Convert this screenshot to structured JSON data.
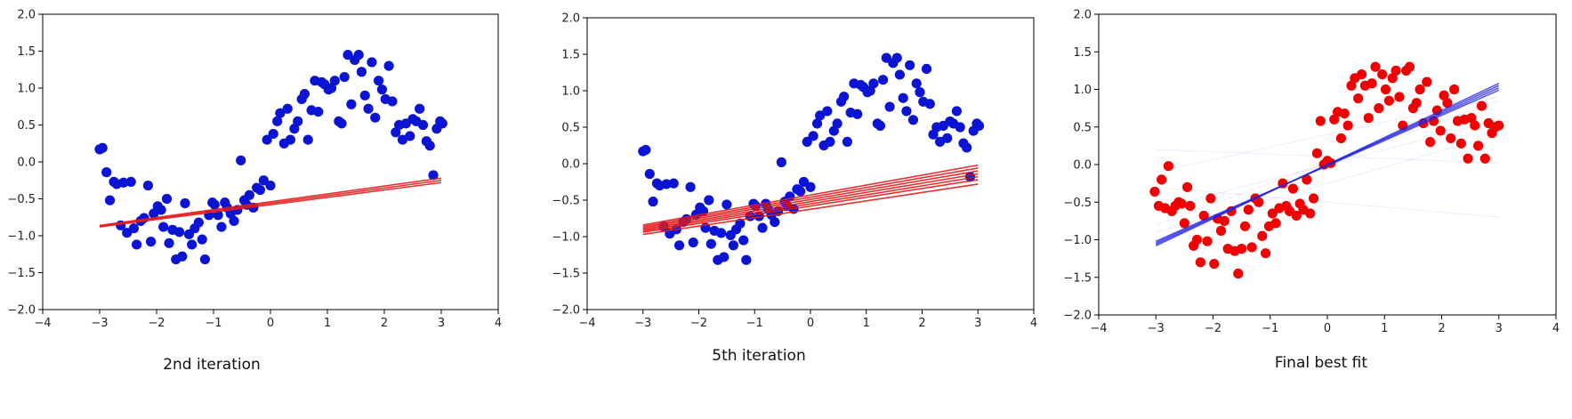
{
  "chart_data": [
    {
      "type": "scatter",
      "caption": "2nd iteration",
      "xlim": [
        -4,
        4
      ],
      "ylim": [
        -2.0,
        2.0
      ],
      "xticks": [
        -4,
        -3,
        -2,
        -1,
        0,
        1,
        2,
        3,
        4
      ],
      "yticks": [
        -2.0,
        -1.5,
        -1.0,
        -0.5,
        0.0,
        0.5,
        1.0,
        1.5,
        2.0
      ],
      "grid": false,
      "point_color": "#0a14d2",
      "line_color": "#e41a1a",
      "line_alpha": 0.9,
      "fit_lines": [
        {
          "x": [
            -3,
            3
          ],
          "y": [
            -0.86,
            -0.22
          ]
        },
        {
          "x": [
            -3,
            3
          ],
          "y": [
            -0.87,
            -0.25
          ]
        },
        {
          "x": [
            -3,
            3
          ],
          "y": [
            -0.88,
            -0.28
          ]
        }
      ],
      "points": {
        "x": [
          -3.0,
          -2.95,
          -2.88,
          -2.82,
          -2.75,
          -2.7,
          -2.63,
          -2.58,
          -2.52,
          -2.45,
          -2.4,
          -2.35,
          -2.28,
          -2.22,
          -2.15,
          -2.1,
          -2.05,
          -1.98,
          -1.92,
          -1.88,
          -1.82,
          -1.78,
          -1.72,
          -1.66,
          -1.6,
          -1.55,
          -1.5,
          -1.43,
          -1.38,
          -1.33,
          -1.26,
          -1.2,
          -1.15,
          -1.08,
          -1.02,
          -0.98,
          -0.92,
          -0.86,
          -0.8,
          -0.76,
          -0.7,
          -0.64,
          -0.58,
          -0.52,
          -0.46,
          -0.42,
          -0.37,
          -0.3,
          -0.24,
          -0.18,
          -0.12,
          -0.06,
          0.0,
          0.05,
          0.12,
          0.17,
          0.24,
          0.3,
          0.35,
          0.42,
          0.48,
          0.55,
          0.6,
          0.66,
          0.72,
          0.78,
          0.84,
          0.9,
          0.95,
          1.02,
          1.07,
          1.13,
          1.2,
          1.25,
          1.3,
          1.36,
          1.42,
          1.48,
          1.55,
          1.6,
          1.66,
          1.72,
          1.78,
          1.84,
          1.9,
          1.96,
          2.02,
          2.08,
          2.14,
          2.2,
          2.26,
          2.32,
          2.38,
          2.45,
          2.5,
          2.56,
          2.62,
          2.68,
          2.74,
          2.8,
          2.86,
          2.92,
          2.98,
          3.02
        ],
        "y": [
          0.17,
          0.19,
          -0.14,
          -0.52,
          -0.27,
          -0.3,
          -0.86,
          -0.28,
          -0.96,
          -0.27,
          -0.9,
          -1.12,
          -0.8,
          -0.76,
          -0.32,
          -1.08,
          -0.7,
          -0.6,
          -0.65,
          -0.88,
          -0.5,
          -1.1,
          -0.92,
          -1.32,
          -0.95,
          -1.28,
          -0.56,
          -0.98,
          -1.12,
          -0.9,
          -0.82,
          -1.05,
          -1.32,
          -0.72,
          -0.55,
          -0.58,
          -0.72,
          -0.88,
          -0.55,
          -0.62,
          -0.7,
          -0.8,
          -0.65,
          0.02,
          -0.52,
          -0.58,
          -0.45,
          -0.62,
          -0.35,
          -0.38,
          -0.25,
          0.3,
          -0.32,
          0.38,
          0.55,
          0.66,
          0.25,
          0.72,
          0.3,
          0.45,
          0.55,
          0.85,
          0.92,
          0.3,
          0.7,
          1.1,
          0.68,
          1.08,
          1.05,
          0.98,
          1.0,
          1.1,
          0.55,
          0.52,
          1.15,
          1.45,
          0.78,
          1.38,
          1.45,
          1.22,
          0.9,
          0.72,
          1.35,
          0.6,
          1.1,
          0.98,
          0.85,
          1.3,
          0.82,
          0.4,
          0.5,
          0.3,
          0.52,
          0.35,
          0.58,
          0.55,
          0.72,
          0.5,
          0.28,
          0.22,
          -0.18,
          0.45,
          0.55,
          0.52
        ]
      }
    },
    {
      "type": "scatter",
      "caption": "5th iteration",
      "xlim": [
        -4,
        4
      ],
      "ylim": [
        -2.0,
        2.0
      ],
      "xticks": [
        -4,
        -3,
        -2,
        -1,
        0,
        1,
        2,
        3,
        4
      ],
      "yticks": [
        -2.0,
        -1.5,
        -1.0,
        -0.5,
        0.0,
        0.5,
        1.0,
        1.5,
        2.0
      ],
      "grid": false,
      "point_color": "#0a14d2",
      "line_color": "#e41a1a",
      "line_alpha": 0.9,
      "fit_lines": [
        {
          "x": [
            -3,
            3
          ],
          "y": [
            -0.84,
            -0.02
          ]
        },
        {
          "x": [
            -3,
            3
          ],
          "y": [
            -0.86,
            -0.06
          ]
        },
        {
          "x": [
            -3,
            3
          ],
          "y": [
            -0.88,
            -0.1
          ]
        },
        {
          "x": [
            -3,
            3
          ],
          "y": [
            -0.9,
            -0.14
          ]
        },
        {
          "x": [
            -3,
            3
          ],
          "y": [
            -0.92,
            -0.18
          ]
        },
        {
          "x": [
            -3,
            3
          ],
          "y": [
            -0.94,
            -0.22
          ]
        },
        {
          "x": [
            -3,
            3
          ],
          "y": [
            -0.97,
            -0.28
          ]
        }
      ],
      "points": {
        "x": [
          -3.0,
          -2.95,
          -2.88,
          -2.82,
          -2.75,
          -2.7,
          -2.63,
          -2.58,
          -2.52,
          -2.45,
          -2.4,
          -2.35,
          -2.28,
          -2.22,
          -2.15,
          -2.1,
          -2.05,
          -1.98,
          -1.92,
          -1.88,
          -1.82,
          -1.78,
          -1.72,
          -1.66,
          -1.6,
          -1.55,
          -1.5,
          -1.43,
          -1.38,
          -1.33,
          -1.26,
          -1.2,
          -1.15,
          -1.08,
          -1.02,
          -0.98,
          -0.92,
          -0.86,
          -0.8,
          -0.76,
          -0.7,
          -0.64,
          -0.58,
          -0.52,
          -0.46,
          -0.42,
          -0.37,
          -0.3,
          -0.24,
          -0.18,
          -0.12,
          -0.06,
          0.0,
          0.05,
          0.12,
          0.17,
          0.24,
          0.3,
          0.35,
          0.42,
          0.48,
          0.55,
          0.6,
          0.66,
          0.72,
          0.78,
          0.84,
          0.9,
          0.95,
          1.02,
          1.07,
          1.13,
          1.2,
          1.25,
          1.3,
          1.36,
          1.42,
          1.48,
          1.55,
          1.6,
          1.66,
          1.72,
          1.78,
          1.84,
          1.9,
          1.96,
          2.02,
          2.08,
          2.14,
          2.2,
          2.26,
          2.32,
          2.38,
          2.45,
          2.5,
          2.56,
          2.62,
          2.68,
          2.74,
          2.8,
          2.86,
          2.92,
          2.98,
          3.02
        ],
        "y": [
          0.17,
          0.19,
          -0.14,
          -0.52,
          -0.27,
          -0.3,
          -0.86,
          -0.28,
          -0.96,
          -0.27,
          -0.9,
          -1.12,
          -0.8,
          -0.76,
          -0.32,
          -1.08,
          -0.7,
          -0.6,
          -0.65,
          -0.88,
          -0.5,
          -1.1,
          -0.92,
          -1.32,
          -0.95,
          -1.28,
          -0.56,
          -0.98,
          -1.12,
          -0.9,
          -0.82,
          -1.05,
          -1.32,
          -0.72,
          -0.55,
          -0.58,
          -0.72,
          -0.88,
          -0.55,
          -0.62,
          -0.7,
          -0.8,
          -0.65,
          0.02,
          -0.52,
          -0.58,
          -0.45,
          -0.62,
          -0.35,
          -0.38,
          -0.25,
          0.3,
          -0.32,
          0.38,
          0.55,
          0.66,
          0.25,
          0.72,
          0.3,
          0.45,
          0.55,
          0.85,
          0.92,
          0.3,
          0.7,
          1.1,
          0.68,
          1.08,
          1.05,
          0.98,
          1.0,
          1.1,
          0.55,
          0.52,
          1.15,
          1.45,
          0.78,
          1.38,
          1.45,
          1.22,
          0.9,
          0.72,
          1.35,
          0.6,
          1.1,
          0.98,
          0.85,
          1.3,
          0.82,
          0.4,
          0.5,
          0.3,
          0.52,
          0.35,
          0.58,
          0.55,
          0.72,
          0.5,
          0.28,
          0.22,
          -0.18,
          0.45,
          0.55,
          0.52
        ]
      }
    },
    {
      "type": "scatter",
      "caption": "Final best fit",
      "xlim": [
        -4,
        4
      ],
      "ylim": [
        -2.0,
        2.0
      ],
      "xticks": [
        -4,
        -3,
        -2,
        -1,
        0,
        1,
        2,
        3,
        4
      ],
      "yticks": [
        -2.0,
        -1.5,
        -1.0,
        -0.5,
        0.0,
        0.5,
        1.0,
        1.5,
        2.0
      ],
      "grid": false,
      "point_color": "#f00000",
      "line_color": "#2424e0",
      "line_alpha": 0.75,
      "fit_lines": [
        {
          "x": [
            -3,
            3
          ],
          "y": [
            -1.08,
            1.08
          ]
        },
        {
          "x": [
            -3,
            3
          ],
          "y": [
            -1.06,
            1.05
          ]
        },
        {
          "x": [
            -3,
            3
          ],
          "y": [
            -1.04,
            1.02
          ]
        },
        {
          "x": [
            -3,
            3
          ],
          "y": [
            -1.02,
            0.99
          ]
        }
      ],
      "faint_lines": [
        {
          "x": [
            -3,
            3
          ],
          "y": [
            0.2,
            0.02
          ]
        },
        {
          "x": [
            -3,
            3
          ],
          "y": [
            -0.1,
            0.9
          ]
        },
        {
          "x": [
            -3,
            3
          ],
          "y": [
            -0.6,
            0.6
          ]
        },
        {
          "x": [
            -3,
            3
          ],
          "y": [
            -0.9,
            0.4
          ]
        },
        {
          "x": [
            -3,
            3
          ],
          "y": [
            -0.3,
            -0.7
          ]
        },
        {
          "x": [
            -3,
            3
          ],
          "y": [
            -0.8,
            0.85
          ]
        }
      ],
      "points": {
        "x": [
          -3.02,
          -2.95,
          -2.9,
          -2.84,
          -2.78,
          -2.72,
          -2.66,
          -2.6,
          -2.55,
          -2.5,
          -2.45,
          -2.4,
          -2.34,
          -2.28,
          -2.22,
          -2.16,
          -2.1,
          -2.04,
          -1.98,
          -1.92,
          -1.86,
          -1.8,
          -1.74,
          -1.68,
          -1.62,
          -1.56,
          -1.5,
          -1.44,
          -1.38,
          -1.32,
          -1.26,
          -1.2,
          -1.14,
          -1.08,
          -1.02,
          -0.96,
          -0.9,
          -0.84,
          -0.78,
          -0.72,
          -0.66,
          -0.6,
          -0.54,
          -0.48,
          -0.42,
          -0.36,
          -0.3,
          -0.24,
          -0.18,
          -0.12,
          -0.06,
          0.0,
          0.06,
          0.12,
          0.18,
          0.24,
          0.3,
          0.36,
          0.42,
          0.48,
          0.54,
          0.6,
          0.66,
          0.72,
          0.78,
          0.84,
          0.9,
          0.96,
          1.02,
          1.08,
          1.14,
          1.2,
          1.26,
          1.32,
          1.38,
          1.44,
          1.5,
          1.56,
          1.62,
          1.68,
          1.74,
          1.8,
          1.86,
          1.92,
          1.98,
          2.04,
          2.1,
          2.16,
          2.22,
          2.28,
          2.34,
          2.4,
          2.46,
          2.52,
          2.58,
          2.64,
          2.7,
          2.76,
          2.82,
          2.88,
          2.94,
          3.0
        ],
        "y": [
          -0.36,
          -0.55,
          -0.2,
          -0.58,
          -0.02,
          -0.62,
          -0.55,
          -0.5,
          -0.52,
          -0.78,
          -0.3,
          -0.55,
          -1.08,
          -1.0,
          -1.3,
          -0.68,
          -1.02,
          -0.45,
          -1.32,
          -0.72,
          -0.88,
          -0.75,
          -1.12,
          -0.62,
          -1.15,
          -1.45,
          -1.12,
          -0.82,
          -0.6,
          -1.1,
          -0.45,
          -0.5,
          -0.95,
          -1.18,
          -0.82,
          -0.65,
          -0.78,
          -0.58,
          -0.25,
          -0.55,
          -0.62,
          -0.32,
          -0.68,
          -0.52,
          -0.6,
          -0.2,
          -0.65,
          -0.45,
          0.15,
          0.58,
          0.0,
          0.05,
          0.02,
          0.6,
          0.7,
          0.35,
          0.68,
          0.52,
          1.05,
          1.15,
          0.88,
          1.2,
          1.05,
          0.62,
          1.08,
          1.3,
          0.75,
          1.2,
          1.0,
          0.85,
          1.15,
          1.25,
          0.9,
          0.52,
          1.25,
          1.3,
          0.75,
          0.82,
          1.0,
          0.55,
          1.1,
          0.3,
          0.58,
          0.72,
          0.45,
          0.92,
          0.82,
          0.35,
          1.0,
          0.58,
          0.28,
          0.6,
          0.08,
          0.62,
          0.52,
          0.25,
          0.78,
          0.08,
          0.55,
          0.42,
          0.5,
          0.52
        ]
      }
    }
  ]
}
